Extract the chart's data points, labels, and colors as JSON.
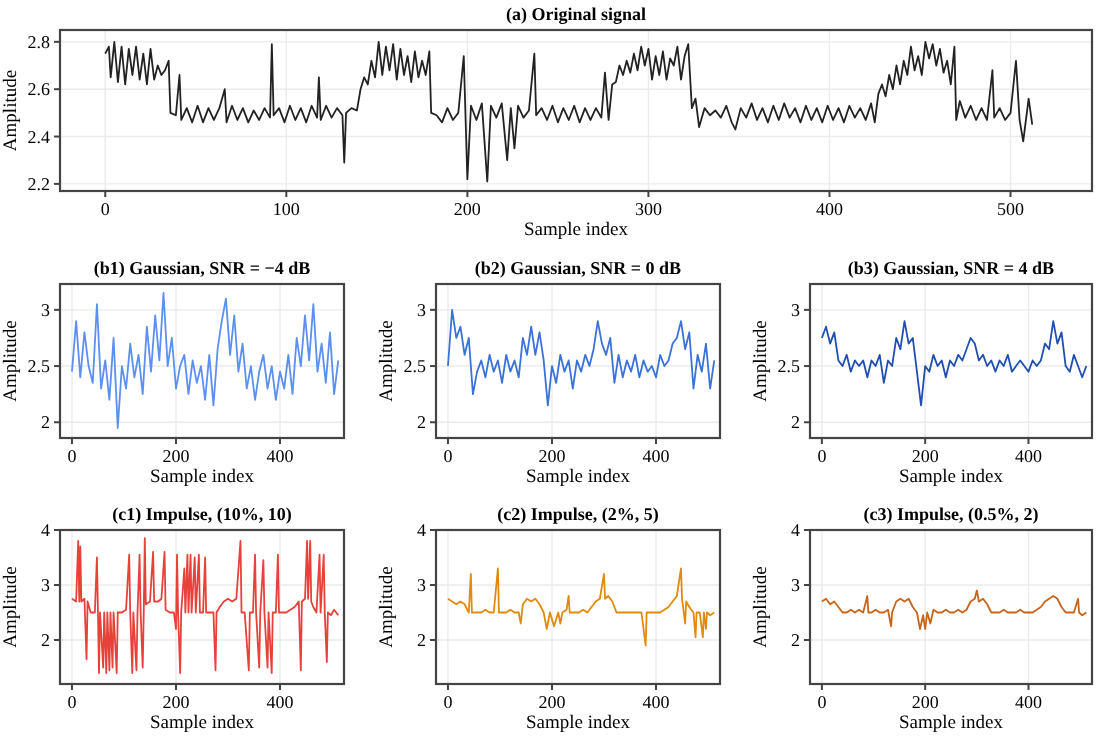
{
  "chart_data": [
    {
      "type": "line",
      "title": "(a) Original signal",
      "xlabel": "Sample index",
      "ylabel": "Amplitude",
      "xlim": [
        -25,
        545
      ],
      "ylim": [
        2.17,
        2.85
      ],
      "xticks": [
        0,
        100,
        200,
        300,
        400,
        500
      ],
      "yticks": [
        2.2,
        2.4,
        2.6,
        2.8
      ],
      "grid": true,
      "x": [
        0,
        2,
        3,
        5,
        7,
        9,
        11,
        13,
        15,
        17,
        19,
        21,
        23,
        25,
        27,
        29,
        31,
        33,
        35,
        36,
        39,
        41,
        42,
        45,
        48,
        51,
        54,
        57,
        60,
        63,
        66,
        67,
        70,
        73,
        76,
        79,
        82,
        85,
        88,
        91,
        92,
        93,
        96,
        99,
        102,
        105,
        108,
        111,
        114,
        117,
        118,
        119,
        122,
        125,
        128,
        131,
        132,
        133,
        136,
        139,
        141,
        143,
        145,
        147,
        149,
        151,
        153,
        155,
        157,
        159,
        161,
        163,
        165,
        167,
        169,
        171,
        173,
        175,
        177,
        179,
        180,
        183,
        186,
        189,
        192,
        195,
        198,
        200,
        202,
        205,
        208,
        211,
        213,
        216,
        219,
        222,
        224,
        226,
        228,
        231,
        234,
        237,
        238,
        241,
        244,
        247,
        250,
        253,
        256,
        259,
        262,
        265,
        268,
        271,
        274,
        276,
        278,
        280,
        282,
        284,
        286,
        288,
        290,
        292,
        294,
        296,
        298,
        300,
        302,
        304,
        306,
        308,
        310,
        312,
        314,
        316,
        318,
        320,
        322,
        324,
        326,
        328,
        331,
        334,
        337,
        340,
        343,
        346,
        348,
        351,
        354,
        357,
        360,
        363,
        366,
        369,
        372,
        375,
        378,
        381,
        384,
        387,
        390,
        393,
        396,
        399,
        402,
        405,
        408,
        411,
        414,
        417,
        420,
        423,
        425,
        427,
        429,
        431,
        433,
        435,
        437,
        439,
        441,
        443,
        445,
        447,
        449,
        451,
        453,
        455,
        457,
        459,
        461,
        463,
        465,
        467,
        469,
        470,
        472,
        475,
        478,
        481,
        484,
        487,
        490,
        491,
        494,
        497,
        500,
        503,
        505,
        507,
        509,
        510,
        512
      ],
      "series": [
        {
          "color": "#222222",
          "values": [
            2.75,
            2.78,
            2.65,
            2.8,
            2.63,
            2.78,
            2.62,
            2.77,
            2.66,
            2.78,
            2.64,
            2.75,
            2.62,
            2.77,
            2.64,
            2.7,
            2.66,
            2.68,
            2.72,
            2.5,
            2.49,
            2.66,
            2.47,
            2.52,
            2.46,
            2.53,
            2.46,
            2.52,
            2.47,
            2.52,
            2.6,
            2.46,
            2.53,
            2.47,
            2.52,
            2.46,
            2.51,
            2.47,
            2.52,
            2.48,
            2.79,
            2.49,
            2.52,
            2.46,
            2.53,
            2.47,
            2.52,
            2.46,
            2.53,
            2.48,
            2.65,
            2.47,
            2.53,
            2.48,
            2.52,
            2.49,
            2.29,
            2.5,
            2.52,
            2.51,
            2.6,
            2.65,
            2.62,
            2.72,
            2.65,
            2.8,
            2.66,
            2.78,
            2.68,
            2.79,
            2.64,
            2.77,
            2.66,
            2.74,
            2.63,
            2.76,
            2.65,
            2.72,
            2.66,
            2.76,
            2.5,
            2.49,
            2.46,
            2.52,
            2.47,
            2.5,
            2.74,
            2.22,
            2.53,
            2.47,
            2.54,
            2.21,
            2.53,
            2.48,
            2.54,
            2.3,
            2.52,
            2.35,
            2.53,
            2.48,
            2.51,
            2.75,
            2.49,
            2.52,
            2.47,
            2.53,
            2.46,
            2.52,
            2.47,
            2.53,
            2.46,
            2.52,
            2.47,
            2.52,
            2.48,
            2.67,
            2.47,
            2.62,
            2.63,
            2.7,
            2.66,
            2.72,
            2.67,
            2.75,
            2.68,
            2.78,
            2.7,
            2.77,
            2.64,
            2.74,
            2.66,
            2.76,
            2.64,
            2.73,
            2.7,
            2.78,
            2.64,
            2.74,
            2.79,
            2.52,
            2.56,
            2.44,
            2.52,
            2.49,
            2.51,
            2.48,
            2.53,
            2.46,
            2.43,
            2.52,
            2.48,
            2.54,
            2.47,
            2.52,
            2.46,
            2.53,
            2.47,
            2.54,
            2.48,
            2.52,
            2.46,
            2.53,
            2.47,
            2.52,
            2.46,
            2.53,
            2.47,
            2.52,
            2.46,
            2.53,
            2.48,
            2.52,
            2.47,
            2.54,
            2.46,
            2.58,
            2.62,
            2.57,
            2.66,
            2.6,
            2.7,
            2.62,
            2.72,
            2.66,
            2.78,
            2.68,
            2.74,
            2.66,
            2.8,
            2.73,
            2.79,
            2.7,
            2.77,
            2.67,
            2.72,
            2.62,
            2.78,
            2.47,
            2.55,
            2.48,
            2.53,
            2.47,
            2.52,
            2.47,
            2.68,
            2.48,
            2.52,
            2.47,
            2.5,
            2.72,
            2.47,
            2.38,
            2.5,
            2.56,
            2.45
          ]
        }
      ]
    },
    {
      "type": "line",
      "title": "(b1) Gaussian, SNR = −4 dB",
      "xlabel": "Sample index",
      "ylabel": "Amplitude",
      "xlim": [
        -23,
        523
      ],
      "ylim": [
        1.86,
        3.23
      ],
      "xticks": [
        0,
        200,
        400
      ],
      "yticks": [
        2,
        2.5,
        3
      ],
      "grid": true,
      "x": [
        0,
        8,
        16,
        24,
        32,
        40,
        48,
        56,
        64,
        72,
        80,
        88,
        96,
        104,
        112,
        120,
        128,
        136,
        144,
        152,
        160,
        168,
        176,
        184,
        192,
        200,
        208,
        216,
        224,
        232,
        240,
        248,
        256,
        264,
        272,
        280,
        288,
        296,
        304,
        312,
        320,
        328,
        336,
        344,
        352,
        360,
        368,
        376,
        384,
        392,
        400,
        408,
        416,
        424,
        432,
        440,
        448,
        456,
        464,
        472,
        480,
        488,
        496,
        504,
        512
      ],
      "series": [
        {
          "color": "#5b8ff0",
          "values": [
            2.45,
            2.9,
            2.4,
            2.8,
            2.5,
            2.35,
            3.05,
            2.3,
            2.55,
            2.2,
            2.75,
            1.95,
            2.5,
            2.3,
            2.7,
            2.4,
            2.6,
            2.25,
            2.85,
            2.45,
            2.95,
            2.55,
            3.15,
            2.5,
            2.75,
            2.3,
            2.5,
            2.6,
            2.25,
            2.55,
            2.35,
            2.5,
            2.2,
            2.6,
            2.15,
            2.65,
            2.9,
            3.1,
            2.6,
            2.95,
            2.45,
            2.7,
            2.3,
            2.5,
            2.2,
            2.45,
            2.6,
            2.3,
            2.5,
            2.2,
            2.45,
            2.3,
            2.6,
            2.25,
            2.75,
            2.5,
            2.95,
            2.55,
            3.05,
            2.45,
            2.7,
            2.35,
            2.8,
            2.25,
            2.55
          ]
        }
      ]
    },
    {
      "type": "line",
      "title": "(b2) Gaussian, SNR = 0 dB",
      "xlabel": "Sample index",
      "ylabel": "Amplitude",
      "xlim": [
        -23,
        523
      ],
      "ylim": [
        1.86,
        3.23
      ],
      "xticks": [
        0,
        200,
        400
      ],
      "yticks": [
        2,
        2.5,
        3
      ],
      "grid": true,
      "x": [
        0,
        8,
        16,
        24,
        32,
        40,
        48,
        56,
        64,
        72,
        80,
        88,
        96,
        104,
        112,
        120,
        128,
        136,
        144,
        152,
        160,
        168,
        176,
        184,
        192,
        200,
        208,
        216,
        224,
        232,
        240,
        248,
        256,
        264,
        272,
        280,
        288,
        296,
        304,
        312,
        320,
        328,
        336,
        344,
        352,
        360,
        368,
        376,
        384,
        392,
        400,
        408,
        416,
        424,
        432,
        440,
        448,
        456,
        464,
        472,
        480,
        488,
        496,
        504,
        512
      ],
      "series": [
        {
          "color": "#3a72d8",
          "values": [
            2.5,
            3.0,
            2.75,
            2.85,
            2.6,
            2.75,
            2.25,
            2.45,
            2.55,
            2.4,
            2.6,
            2.45,
            2.55,
            2.35,
            2.6,
            2.45,
            2.55,
            2.4,
            2.75,
            2.6,
            2.85,
            2.6,
            2.8,
            2.55,
            2.15,
            2.5,
            2.35,
            2.6,
            2.45,
            2.55,
            2.3,
            2.55,
            2.45,
            2.6,
            2.5,
            2.65,
            2.9,
            2.7,
            2.6,
            2.75,
            2.35,
            2.6,
            2.4,
            2.55,
            2.45,
            2.6,
            2.4,
            2.55,
            2.45,
            2.5,
            2.4,
            2.6,
            2.5,
            2.55,
            2.7,
            2.75,
            2.9,
            2.65,
            2.8,
            2.3,
            2.6,
            2.45,
            2.7,
            2.3,
            2.55
          ]
        }
      ]
    },
    {
      "type": "line",
      "title": "(b3) Gaussian, SNR = 4 dB",
      "xlabel": "Sample index",
      "ylabel": "Amplitude",
      "xlim": [
        -23,
        523
      ],
      "ylim": [
        1.86,
        3.23
      ],
      "xticks": [
        0,
        200,
        400
      ],
      "yticks": [
        2,
        2.5,
        3
      ],
      "grid": true,
      "x": [
        0,
        8,
        16,
        24,
        32,
        40,
        48,
        56,
        64,
        72,
        80,
        88,
        96,
        104,
        112,
        120,
        128,
        136,
        144,
        152,
        160,
        168,
        176,
        184,
        192,
        200,
        208,
        216,
        224,
        232,
        240,
        248,
        256,
        264,
        272,
        280,
        288,
        296,
        304,
        312,
        320,
        328,
        336,
        344,
        352,
        360,
        368,
        376,
        384,
        392,
        400,
        408,
        416,
        424,
        432,
        440,
        448,
        456,
        464,
        472,
        480,
        488,
        496,
        504,
        512
      ],
      "series": [
        {
          "color": "#1f4fb0",
          "values": [
            2.75,
            2.85,
            2.7,
            2.8,
            2.55,
            2.5,
            2.6,
            2.45,
            2.55,
            2.5,
            2.55,
            2.4,
            2.55,
            2.5,
            2.6,
            2.35,
            2.55,
            2.5,
            2.75,
            2.65,
            2.9,
            2.7,
            2.75,
            2.45,
            2.15,
            2.5,
            2.45,
            2.6,
            2.5,
            2.55,
            2.4,
            2.55,
            2.5,
            2.6,
            2.55,
            2.65,
            2.75,
            2.7,
            2.55,
            2.6,
            2.5,
            2.55,
            2.45,
            2.55,
            2.5,
            2.6,
            2.45,
            2.5,
            2.55,
            2.5,
            2.45,
            2.55,
            2.5,
            2.55,
            2.7,
            2.65,
            2.9,
            2.7,
            2.8,
            2.5,
            2.45,
            2.6,
            2.5,
            2.4,
            2.5
          ]
        }
      ]
    },
    {
      "type": "line",
      "title": "(c1) Impulse, (10%, 10)",
      "xlabel": "Sample index",
      "ylabel": "Amplitude",
      "xlim": [
        -23,
        523
      ],
      "ylim": [
        1.2,
        4
      ],
      "xticks": [
        0,
        200,
        400
      ],
      "yticks": [
        2,
        3,
        4
      ],
      "grid": true,
      "x": [
        0,
        8,
        12,
        14,
        16,
        18,
        24,
        28,
        30,
        36,
        44,
        48,
        50,
        52,
        54,
        60,
        62,
        66,
        68,
        72,
        74,
        78,
        80,
        86,
        88,
        96,
        104,
        110,
        112,
        116,
        118,
        124,
        126,
        130,
        132,
        136,
        138,
        140,
        142,
        150,
        156,
        158,
        166,
        172,
        178,
        180,
        188,
        196,
        200,
        202,
        204,
        208,
        210,
        216,
        218,
        222,
        224,
        228,
        230,
        236,
        238,
        244,
        246,
        252,
        256,
        258,
        264,
        272,
        276,
        278,
        284,
        292,
        300,
        308,
        316,
        324,
        326,
        332,
        340,
        342,
        348,
        352,
        354,
        360,
        362,
        368,
        370,
        376,
        378,
        384,
        386,
        392,
        396,
        398,
        404,
        412,
        420,
        428,
        436,
        440,
        442,
        448,
        452,
        454,
        458,
        460,
        464,
        470,
        476,
        478,
        484,
        486,
        490,
        492,
        498,
        504,
        512
      ],
      "series": [
        {
          "color": "#e8413a",
          "values": [
            2.75,
            2.7,
            3.8,
            2.7,
            3.7,
            2.7,
            2.75,
            1.65,
            2.7,
            2.5,
            2.5,
            3.5,
            2.5,
            1.4,
            2.5,
            1.5,
            2.5,
            1.4,
            2.5,
            1.45,
            2.5,
            1.5,
            2.5,
            1.4,
            2.5,
            2.5,
            2.55,
            3.55,
            2.5,
            1.4,
            2.5,
            1.45,
            2.5,
            3.55,
            2.5,
            1.5,
            2.5,
            3.85,
            2.65,
            2.7,
            3.6,
            2.7,
            2.7,
            2.75,
            3.6,
            2.55,
            2.5,
            2.5,
            2.2,
            3.55,
            2.5,
            1.4,
            2.5,
            3.3,
            2.5,
            3.55,
            2.5,
            3.55,
            2.5,
            3.5,
            2.5,
            3.55,
            2.5,
            2.5,
            3.5,
            2.5,
            2.5,
            2.5,
            1.45,
            2.5,
            2.6,
            2.7,
            2.75,
            2.7,
            2.75,
            3.8,
            2.5,
            2.5,
            1.45,
            2.5,
            2.5,
            3.55,
            2.5,
            1.5,
            2.5,
            3.45,
            2.5,
            1.5,
            2.5,
            1.4,
            2.5,
            2.5,
            3.55,
            2.5,
            2.5,
            2.5,
            2.55,
            2.6,
            2.7,
            1.45,
            2.7,
            2.75,
            3.8,
            2.75,
            3.8,
            2.7,
            2.6,
            2.5,
            3.55,
            2.5,
            3.55,
            2.5,
            1.6,
            2.5,
            2.45,
            2.55,
            2.45
          ]
        }
      ]
    },
    {
      "type": "line",
      "title": "(c2) Impulse, (2%, 5)",
      "xlabel": "Sample index",
      "ylabel": "Amplitude",
      "xlim": [
        -23,
        523
      ],
      "ylim": [
        1.2,
        4
      ],
      "xticks": [
        0,
        200,
        400
      ],
      "yticks": [
        2,
        3,
        4
      ],
      "grid": true,
      "x": [
        0,
        8,
        16,
        24,
        32,
        40,
        44,
        46,
        56,
        64,
        72,
        80,
        88,
        96,
        98,
        104,
        112,
        120,
        128,
        136,
        140,
        144,
        152,
        160,
        168,
        176,
        184,
        190,
        196,
        204,
        212,
        216,
        220,
        228,
        232,
        234,
        244,
        252,
        260,
        268,
        276,
        284,
        292,
        300,
        302,
        308,
        316,
        324,
        332,
        340,
        348,
        356,
        364,
        372,
        380,
        382,
        392,
        400,
        408,
        416,
        424,
        432,
        440,
        448,
        450,
        456,
        458,
        464,
        472,
        476,
        478,
        484,
        490,
        492,
        496,
        498,
        504,
        512
      ],
      "series": [
        {
          "color": "#e08a10",
          "values": [
            2.75,
            2.7,
            2.65,
            2.7,
            2.65,
            2.5,
            3.2,
            2.5,
            2.5,
            2.5,
            2.55,
            2.5,
            2.5,
            3.3,
            2.5,
            2.5,
            2.5,
            2.55,
            2.5,
            2.5,
            2.3,
            2.65,
            2.75,
            2.7,
            2.75,
            2.65,
            2.5,
            2.2,
            2.5,
            2.25,
            2.5,
            2.3,
            2.5,
            2.55,
            2.8,
            2.5,
            2.5,
            2.5,
            2.55,
            2.5,
            2.6,
            2.7,
            2.75,
            3.2,
            2.75,
            2.8,
            2.7,
            2.5,
            2.5,
            2.5,
            2.5,
            2.5,
            2.5,
            2.5,
            1.9,
            2.5,
            2.5,
            2.5,
            2.5,
            2.55,
            2.6,
            2.7,
            2.8,
            3.3,
            2.75,
            2.3,
            2.7,
            2.6,
            2.5,
            2.05,
            2.5,
            2.5,
            2.05,
            2.5,
            2.2,
            2.5,
            2.45,
            2.5
          ]
        }
      ]
    },
    {
      "type": "line",
      "title": "(c3) Impulse, (0.5%, 2)",
      "xlabel": "Sample index",
      "ylabel": "Amplitude",
      "xlim": [
        -23,
        523
      ],
      "ylim": [
        1.2,
        4
      ],
      "xticks": [
        0,
        200,
        400
      ],
      "yticks": [
        2,
        3,
        4
      ],
      "grid": true,
      "x": [
        0,
        8,
        16,
        24,
        32,
        40,
        48,
        56,
        64,
        72,
        80,
        88,
        90,
        96,
        104,
        112,
        120,
        128,
        134,
        136,
        144,
        152,
        160,
        168,
        176,
        184,
        190,
        196,
        200,
        204,
        210,
        216,
        224,
        232,
        240,
        248,
        256,
        264,
        272,
        280,
        288,
        296,
        300,
        304,
        312,
        320,
        328,
        336,
        344,
        352,
        360,
        368,
        376,
        384,
        392,
        400,
        408,
        416,
        424,
        432,
        440,
        448,
        456,
        464,
        472,
        480,
        488,
        496,
        498,
        504,
        512
      ],
      "series": [
        {
          "color": "#c8651a",
          "values": [
            2.7,
            2.75,
            2.65,
            2.7,
            2.6,
            2.5,
            2.5,
            2.55,
            2.5,
            2.55,
            2.5,
            2.8,
            2.5,
            2.5,
            2.55,
            2.5,
            2.5,
            2.55,
            2.25,
            2.5,
            2.7,
            2.75,
            2.7,
            2.75,
            2.6,
            2.5,
            2.2,
            2.45,
            2.2,
            2.5,
            2.3,
            2.55,
            2.5,
            2.5,
            2.55,
            2.5,
            2.5,
            2.55,
            2.5,
            2.55,
            2.7,
            2.75,
            2.9,
            2.7,
            2.75,
            2.65,
            2.5,
            2.5,
            2.5,
            2.55,
            2.5,
            2.5,
            2.5,
            2.55,
            2.5,
            2.5,
            2.5,
            2.55,
            2.6,
            2.7,
            2.75,
            2.8,
            2.75,
            2.6,
            2.5,
            2.5,
            2.5,
            2.75,
            2.5,
            2.45,
            2.5
          ]
        }
      ]
    }
  ]
}
